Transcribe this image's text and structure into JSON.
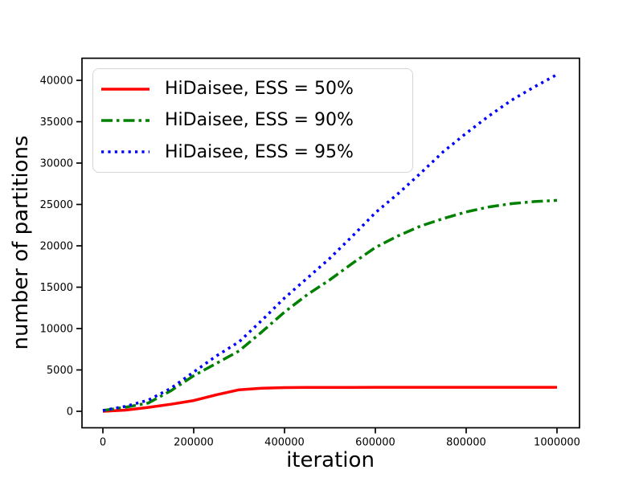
{
  "chart_data": {
    "type": "line",
    "title": "",
    "xlabel": "iteration",
    "ylabel": "number of partitions",
    "xlim": [
      -50000,
      1050000
    ],
    "ylim": [
      -2000,
      42700
    ],
    "x_ticks": [
      0,
      200000,
      400000,
      600000,
      800000,
      1000000
    ],
    "y_ticks": [
      0,
      5000,
      10000,
      15000,
      20000,
      25000,
      30000,
      35000,
      40000
    ],
    "grid": false,
    "legend_position": "upper left",
    "x": [
      0,
      50000,
      100000,
      150000,
      200000,
      250000,
      300000,
      350000,
      400000,
      450000,
      500000,
      550000,
      600000,
      650000,
      700000,
      750000,
      800000,
      850000,
      900000,
      950000,
      1000000
    ],
    "series": [
      {
        "name": "HiDaisee, ESS = 50%",
        "color": "#ff0000",
        "style": "solid",
        "values": [
          0,
          150,
          480,
          850,
          1300,
          2000,
          2600,
          2800,
          2860,
          2880,
          2890,
          2890,
          2900,
          2900,
          2900,
          2900,
          2900,
          2900,
          2900,
          2900,
          2900
        ]
      },
      {
        "name": "HiDaisee, ESS = 90%",
        "color": "#008000",
        "style": "dashdot",
        "values": [
          100,
          500,
          1000,
          2500,
          4300,
          5800,
          7300,
          9600,
          12000,
          14100,
          15900,
          17900,
          19800,
          21200,
          22400,
          23300,
          24100,
          24700,
          25100,
          25350,
          25500
        ]
      },
      {
        "name": "HiDaisee, ESS = 95%",
        "color": "#0000ff",
        "style": "dotted",
        "values": [
          100,
          600,
          1350,
          2800,
          4750,
          6700,
          8400,
          11000,
          13700,
          16100,
          18500,
          21200,
          24000,
          26300,
          28800,
          31400,
          33600,
          35700,
          37600,
          39200,
          40700
        ]
      }
    ]
  }
}
